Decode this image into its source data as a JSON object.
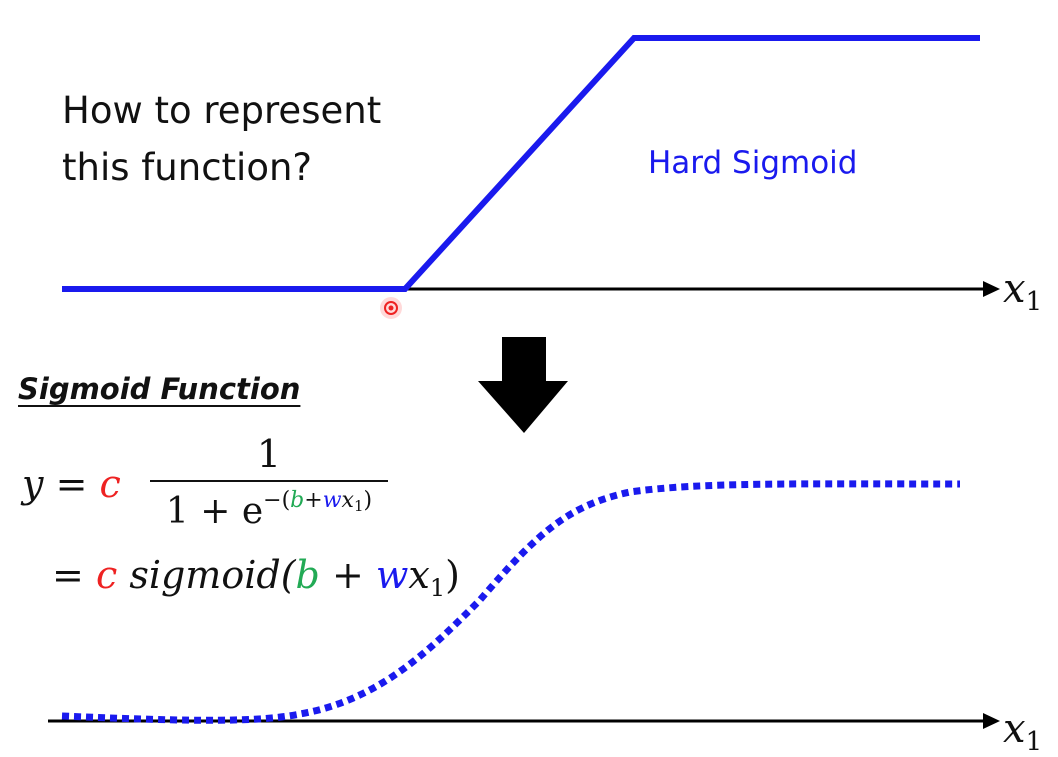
{
  "question": {
    "line1": "How to represent",
    "line2": "this function?"
  },
  "hard_sigmoid_label": "Hard Sigmoid",
  "axis_label": {
    "var": "x",
    "sub": "1"
  },
  "sigmoid_title": "Sigmoid Function",
  "formula": {
    "y": "y",
    "eq": "=",
    "c": "c",
    "numerator": "1",
    "den_prefix": "1 + e",
    "exp_open": "−(",
    "b": "b",
    "plus": "+",
    "w": "w",
    "x": "x",
    "x_sub": "1",
    "exp_close": ")",
    "line2_eq": "=",
    "sigmoid_word": "sigmoid(",
    "plus_spaced": " + ",
    "close_paren": ")"
  },
  "colors": {
    "curve": "#1a1aee",
    "c": "#ee2222",
    "b": "#22aa55",
    "w": "#1a1aee",
    "pointer": "#ff3333",
    "axis": "#000000"
  },
  "icons": [
    "down-arrow-icon",
    "pointer-dot-icon"
  ]
}
